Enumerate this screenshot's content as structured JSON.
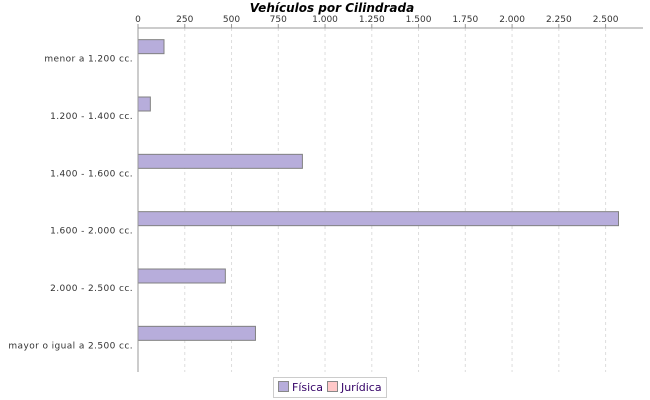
{
  "chart_data": {
    "type": "bar",
    "orientation": "horizontal",
    "title": "Vehículos por Cilindrada",
    "categories": [
      "menor a 1.200 cc.",
      "1.200 - 1.400 cc.",
      "1.400 - 1.600 cc.",
      "1.600 - 2.000 cc.",
      "2.000 - 2.500 cc.",
      "mayor o igual a 2.500 cc."
    ],
    "series": [
      {
        "name": "Física",
        "color": "#b7addb",
        "values": [
          139,
          66,
          879,
          2569,
          467,
          628
        ]
      },
      {
        "name": "Jurídica",
        "color": "#ffc8c8",
        "values": [
          0,
          0,
          0,
          0,
          0,
          0
        ]
      }
    ],
    "xlim": [
      0,
      2700
    ],
    "xticks": [
      0,
      250,
      500,
      750,
      1000,
      1250,
      1500,
      1750,
      2000,
      2250,
      2500
    ],
    "xtick_labels": [
      "0",
      "250",
      "500",
      "750",
      "1.000",
      "1.250",
      "1.500",
      "1.750",
      "2.000",
      "2.250",
      "2.500"
    ],
    "axis_position": "top",
    "grid": true,
    "legend_position": "bottom"
  }
}
